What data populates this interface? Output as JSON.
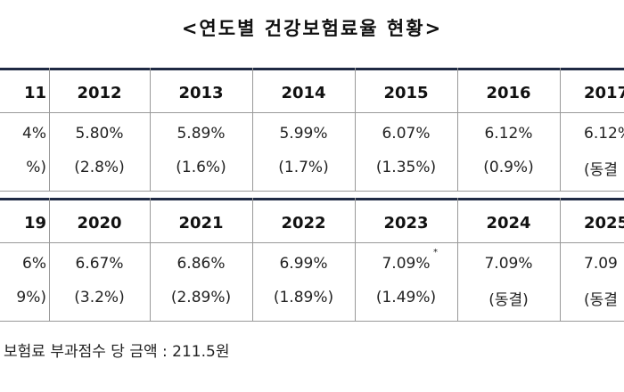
{
  "title": "<연도별 건강보험료율 현황>",
  "blocks": [
    {
      "years": [
        "11",
        "2012",
        "2013",
        "2014",
        "2015",
        "2016",
        "2017"
      ],
      "rates": [
        "4%",
        "5.80%",
        "5.89%",
        "5.99%",
        "6.07%",
        "6.12%",
        "6.12%"
      ],
      "changes": [
        "%)",
        "(2.8%)",
        "(1.6%)",
        "(1.7%)",
        "(1.35%)",
        "(0.9%)",
        "(동결"
      ]
    },
    {
      "years": [
        "19",
        "2020",
        "2021",
        "2022",
        "2023",
        "2024",
        "2025"
      ],
      "rates": [
        "6%",
        "6.67%",
        "6.86%",
        "6.99%",
        "7.09%",
        "7.09%",
        "7.09"
      ],
      "changes": [
        "9%)",
        "(3.2%)",
        "(2.89%)",
        "(1.89%)",
        "(1.49%)",
        "(동결)",
        "(동결"
      ],
      "rate_note": "*"
    }
  ],
  "footnote": "보험료 부과점수 당 금액 :  211.5원"
}
